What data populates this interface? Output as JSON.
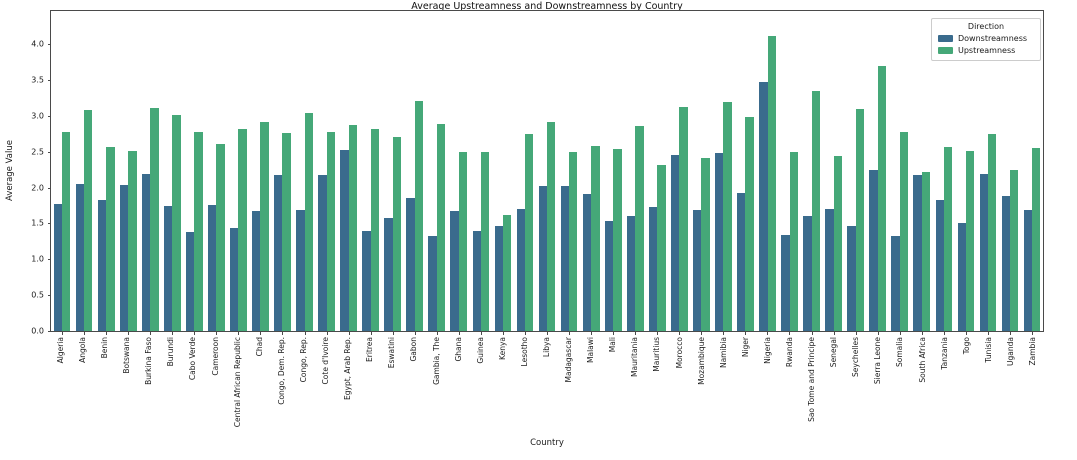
{
  "figure": {
    "title": "Average Upstreamness and Downstreamness by Country",
    "xlabel": "Country",
    "ylabel": "Average Value"
  },
  "legend": {
    "title": "Direction",
    "items": [
      {
        "label": "Downstreamness",
        "color": "#3a6b8d"
      },
      {
        "label": "Upstreamness",
        "color": "#45a878"
      }
    ]
  },
  "chart_data": {
    "type": "bar",
    "title": "Average Upstreamness and Downstreamness by Country",
    "xlabel": "Country",
    "ylabel": "Average Value",
    "ylim": [
      0,
      4.46
    ],
    "yticks": [
      0.0,
      0.5,
      1.0,
      1.5,
      2.0,
      2.5,
      3.0,
      3.5,
      4.0
    ],
    "grid": false,
    "legend_position": "upper right",
    "categories": [
      "Algeria",
      "Angola",
      "Benin",
      "Botswana",
      "Burkina Faso",
      "Burundi",
      "Cabo Verde",
      "Cameroon",
      "Central African Republic",
      "Chad",
      "Congo, Dem. Rep.",
      "Congo, Rep.",
      "Cote d'Ivoire",
      "Egypt, Arab Rep.",
      "Eritrea",
      "Eswatini",
      "Gabon",
      "Gambia, The",
      "Ghana",
      "Guinea",
      "Kenya",
      "Lesotho",
      "Libya",
      "Madagascar",
      "Malawi",
      "Mali",
      "Mauritania",
      "Mauritius",
      "Morocco",
      "Mozambique",
      "Namibia",
      "Niger",
      "Nigeria",
      "Rwanda",
      "Sao Tome and Principe",
      "Senegal",
      "Seychelles",
      "Sierra Leone",
      "Somalia",
      "South Africa",
      "Tanzania",
      "Togo",
      "Tunisia",
      "Uganda",
      "Zambia"
    ],
    "series": [
      {
        "name": "Downstreamness",
        "color": "#3a6b8d",
        "values": [
          1.77,
          2.05,
          1.82,
          2.04,
          2.19,
          1.74,
          1.38,
          1.75,
          1.44,
          1.67,
          2.17,
          1.68,
          2.17,
          2.52,
          1.4,
          1.57,
          1.86,
          1.33,
          1.67,
          1.4,
          1.47,
          1.7,
          2.02,
          2.02,
          1.91,
          1.54,
          1.6,
          1.73,
          2.45,
          1.68,
          2.48,
          1.93,
          3.47,
          1.34,
          1.6,
          1.7,
          1.47,
          2.24,
          1.33,
          2.17,
          1.82,
          1.5,
          2.19,
          1.88,
          1.69
        ]
      },
      {
        "name": "Upstreamness",
        "color": "#45a878",
        "values": [
          2.77,
          3.08,
          2.57,
          2.51,
          3.11,
          3.01,
          2.78,
          2.61,
          2.82,
          2.91,
          2.76,
          3.04,
          2.78,
          2.87,
          2.82,
          2.7,
          3.2,
          2.89,
          2.5,
          2.5,
          1.62,
          2.74,
          2.92,
          2.5,
          2.58,
          2.53,
          2.86,
          2.32,
          3.12,
          2.41,
          3.19,
          2.98,
          4.11,
          2.5,
          3.34,
          2.44,
          3.1,
          3.7,
          2.78,
          2.21,
          2.57,
          2.51,
          2.75,
          2.25,
          2.55
        ]
      }
    ]
  }
}
